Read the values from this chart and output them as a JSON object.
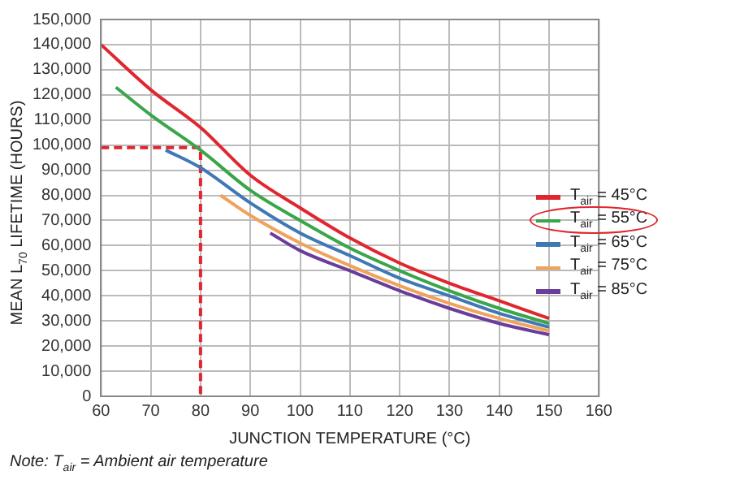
{
  "chart_data": {
    "type": "line",
    "xlabel": "JUNCTION TEMPERATURE (°C)",
    "ylabel": "MEAN L$_{70}$ LIFETIME (HOURS)",
    "xlim": [
      60,
      160
    ],
    "xticks": [
      60,
      70,
      80,
      90,
      100,
      110,
      120,
      130,
      140,
      150,
      160
    ],
    "ylim": [
      0,
      150000
    ],
    "yticks": [
      {
        "value": 0,
        "label": "0"
      },
      {
        "value": 10000,
        "label": "10,000"
      },
      {
        "value": 20000,
        "label": "20,000"
      },
      {
        "value": 30000,
        "label": "30,000"
      },
      {
        "value": 40000,
        "label": "40,000"
      },
      {
        "value": 50000,
        "label": "50,000"
      },
      {
        "value": 60000,
        "label": "60,000"
      },
      {
        "value": 70000,
        "label": "70,000"
      },
      {
        "value": 80000,
        "label": "80,000"
      },
      {
        "value": 90000,
        "label": "90,000"
      },
      {
        "value": 100000,
        "label": "100,000"
      },
      {
        "value": 110000,
        "label": "110,000"
      },
      {
        "value": 120000,
        "label": "120,000"
      },
      {
        "value": 130000,
        "label": "130,000"
      },
      {
        "value": 140000,
        "label": "140,000"
      },
      {
        "value": 150000,
        "label": "150,000"
      }
    ],
    "grid": true,
    "legend": "right",
    "marker": "none",
    "line_style": "solid",
    "series": [
      {
        "name": "T$_{air}$ = 45°C",
        "color": "#e0262f",
        "x": [
          60,
          70,
          80,
          90,
          100,
          110,
          120,
          130,
          140,
          150
        ],
        "values": [
          140000,
          122000,
          107000,
          88000,
          75000,
          63000,
          53000,
          45000,
          38000,
          31000
        ]
      },
      {
        "name": "T$_{air}$ = 55°C",
        "color": "#3aa64a",
        "x": [
          63,
          70,
          80,
          90,
          100,
          110,
          120,
          130,
          140,
          150
        ],
        "values": [
          123000,
          112000,
          98000,
          82000,
          70000,
          59000,
          50000,
          42000,
          35000,
          29000
        ]
      },
      {
        "name": "T$_{air}$ = 65°C",
        "color": "#3f78b5",
        "x": [
          73,
          80,
          90,
          100,
          110,
          120,
          130,
          140,
          150
        ],
        "values": [
          98000,
          91000,
          77000,
          65000,
          56000,
          47000,
          40000,
          33000,
          27500
        ]
      },
      {
        "name": "T$_{air}$ = 75°C",
        "color": "#f0a35a",
        "x": [
          84,
          90,
          100,
          110,
          120,
          130,
          140,
          150
        ],
        "values": [
          80000,
          72000,
          61000,
          52000,
          44000,
          37000,
          31000,
          26000
        ]
      },
      {
        "name": "T$_{air}$ = 85°C",
        "color": "#6a3d9a",
        "x": [
          94,
          100,
          110,
          120,
          130,
          140,
          150
        ],
        "values": [
          65000,
          58000,
          50000,
          42000,
          35000,
          29000,
          24500
        ]
      },
      {
        "color": "#e0262f",
        "line_style": "dashed",
        "x": [
          60,
          80,
          80
        ],
        "values": [
          99000,
          99000,
          0
        ]
      }
    ],
    "annotations": [
      "Note: T$_{air}$ = Ambient air temperature"
    ]
  }
}
